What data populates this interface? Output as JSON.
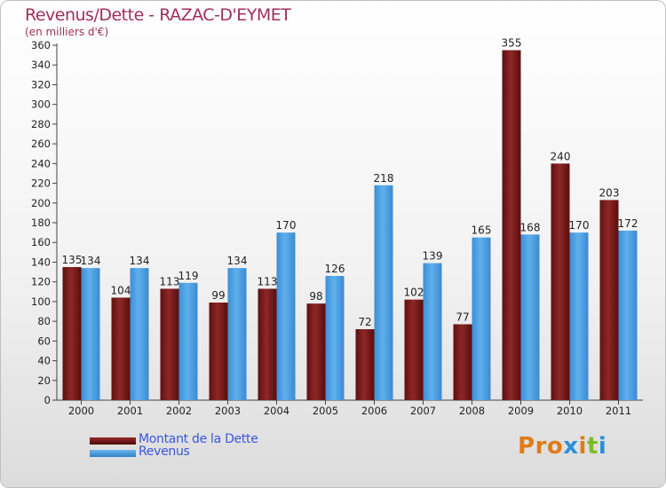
{
  "header": {
    "title": "Revenus/Dette - RAZAC-D'EYMET",
    "subtitle": "(en milliers d'€)"
  },
  "legend": {
    "items": [
      {
        "label": "Montant de la Dette",
        "color": "#7b1a1a"
      },
      {
        "label": "Revenus",
        "color": "#4ea5e8"
      }
    ]
  },
  "logo": {
    "text": "Proxiti"
  },
  "colors": {
    "dette": "#7b1a1a",
    "revenus": "#4ea5e8",
    "title": "#a0305a",
    "legend_text": "#3a56d8"
  },
  "chart_data": {
    "type": "bar",
    "title": "Revenus/Dette - RAZAC-D'EYMET",
    "subtitle": "(en milliers d'€)",
    "xlabel": "",
    "ylabel": "",
    "ylim": [
      0,
      360
    ],
    "ytick_step": 20,
    "grid": false,
    "legend_position": "bottom-left",
    "categories": [
      "2000",
      "2001",
      "2002",
      "2003",
      "2004",
      "2005",
      "2006",
      "2007",
      "2008",
      "2009",
      "2010",
      "2011"
    ],
    "series": [
      {
        "name": "Montant de la Dette",
        "values": [
          135,
          104,
          113,
          99,
          113,
          98,
          72,
          102,
          77,
          355,
          240,
          203
        ]
      },
      {
        "name": "Revenus",
        "values": [
          134,
          134,
          119,
          134,
          170,
          126,
          218,
          139,
          165,
          168,
          170,
          172
        ]
      }
    ]
  }
}
